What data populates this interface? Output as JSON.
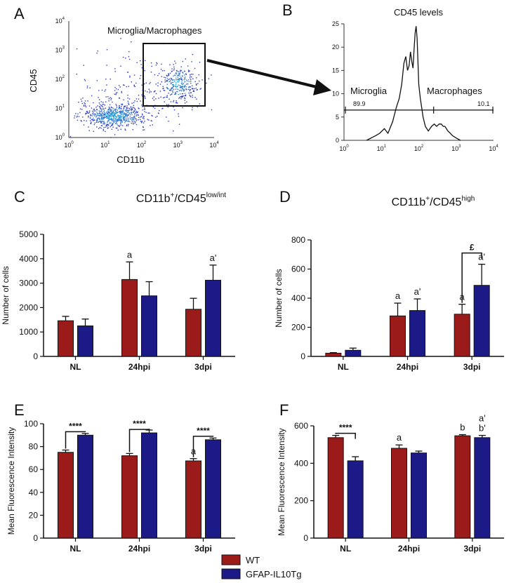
{
  "panel_labels": [
    "A",
    "B",
    "C",
    "D",
    "E",
    "F"
  ],
  "colors": {
    "wt": "#9b1b1b",
    "tg": "#1c1a86",
    "scatter_dense": "#2da0d8",
    "scatter_sparse": "#2b3bc4",
    "scatter_core": "#7ac943"
  },
  "legend": {
    "wt_label": "WT",
    "tg_label": "GFAP-IL10Tg"
  },
  "chart_data": [
    {
      "id": "A",
      "type": "scatter",
      "title": "",
      "xlabel": "CD11b",
      "ylabel": "CD45",
      "xscale": "log",
      "yscale": "log",
      "xlim": [
        1,
        10000
      ],
      "ylim": [
        1,
        10000
      ],
      "x_tick_labels": [
        "10^0",
        "10^1",
        "10^2",
        "10^3",
        "10^4"
      ],
      "y_tick_labels": [
        "10^0",
        "10^1",
        "10^2",
        "10^3",
        "10^4"
      ],
      "gate_label": "Microglia/Macrophages",
      "gate": {
        "x_range": [
          150,
          5500
        ],
        "y_range": [
          12,
          1500
        ]
      },
      "populations": [
        {
          "name": "low",
          "center_log": [
            1.25,
            0.75
          ],
          "spread_log": [
            0.45,
            0.2
          ],
          "count": 650
        },
        {
          "name": "gated",
          "center_log": [
            3.0,
            1.85
          ],
          "spread_log": [
            0.25,
            0.3
          ],
          "count": 260
        },
        {
          "name": "background",
          "center_log": [
            2.0,
            1.6
          ],
          "spread_log": [
            0.9,
            0.6
          ],
          "count": 260
        }
      ]
    },
    {
      "id": "B",
      "type": "line",
      "title": "CD45 levels",
      "xscale": "log",
      "xlim": [
        1,
        10000
      ],
      "ylim": [
        0,
        25
      ],
      "x_tick_labels": [
        "10^0",
        "10^1",
        "10^2",
        "10^3",
        "10^4"
      ],
      "y_ticks": [
        0,
        5,
        10,
        15,
        20,
        25
      ],
      "regions": [
        {
          "label": "Microglia",
          "percent": "89.9"
        },
        {
          "label": "Macrophages",
          "percent": "10.1"
        }
      ],
      "gate_line_y": 6.5,
      "gate_split_x": 250,
      "x": [
        4,
        7,
        9,
        12,
        15,
        20,
        25,
        30,
        35,
        40,
        45,
        50,
        55,
        60,
        65,
        70,
        75,
        80,
        85,
        90,
        95,
        100,
        110,
        120,
        130,
        150,
        180,
        220,
        260,
        300,
        350,
        400,
        450,
        500,
        550,
        600,
        700,
        800,
        1000,
        1300
      ],
      "y": [
        0,
        1,
        1.5,
        2.5,
        1.5,
        4,
        7,
        9,
        12,
        16.5,
        18,
        15,
        16,
        19,
        17,
        15.5,
        19.5,
        23,
        24.5,
        22,
        17,
        12,
        9,
        7,
        5,
        3,
        2,
        3,
        3.5,
        3,
        3.5,
        3.5,
        3,
        3,
        2.5,
        2,
        1.5,
        1,
        0.5,
        0
      ]
    },
    {
      "id": "C",
      "type": "bar",
      "title_main": "CD11b",
      "title_sup1": "+",
      "title_mid": "/CD45",
      "title_sup2": "low/int",
      "ylabel": "Number of cells",
      "categories": [
        "NL",
        "24hpi",
        "3dpi"
      ],
      "ylim": [
        0,
        5000
      ],
      "y_ticks": [
        0,
        1000,
        2000,
        3000,
        4000,
        5000
      ],
      "series": [
        {
          "name": "WT",
          "values": [
            1460,
            3150,
            1930
          ],
          "errors": [
            180,
            720,
            450
          ],
          "labels": [
            "",
            "a",
            ""
          ]
        },
        {
          "name": "GFAP-IL10Tg",
          "values": [
            1250,
            2480,
            3120
          ],
          "errors": [
            280,
            580,
            620
          ],
          "labels": [
            "",
            "",
            "a'"
          ]
        }
      ],
      "brackets": []
    },
    {
      "id": "D",
      "type": "bar",
      "title_main": "CD11b",
      "title_sup1": "+",
      "title_mid": "/CD45",
      "title_sup2": "high",
      "ylabel": "Number of cells",
      "categories": [
        "NL",
        "24hpi",
        "3dpi"
      ],
      "ylim": [
        0,
        800
      ],
      "y_ticks": [
        0,
        200,
        400,
        600,
        800
      ],
      "series": [
        {
          "name": "WT",
          "values": [
            22,
            278,
            290
          ],
          "errors": [
            4,
            88,
            68
          ],
          "labels": [
            "",
            "a",
            "a"
          ]
        },
        {
          "name": "GFAP-IL10Tg",
          "values": [
            42,
            315,
            488
          ],
          "errors": [
            15,
            80,
            145
          ],
          "labels": [
            "",
            "a'",
            "a'"
          ]
        }
      ],
      "brackets": [
        {
          "category": 2,
          "label": "£",
          "y": 710
        }
      ]
    },
    {
      "id": "E",
      "type": "bar",
      "ylabel": "Mean Fluorescence Intensity",
      "categories": [
        "NL",
        "24hpi",
        "3dpi"
      ],
      "ylim": [
        0,
        100
      ],
      "y_ticks": [
        0,
        20,
        40,
        60,
        80,
        100
      ],
      "series": [
        {
          "name": "WT",
          "values": [
            75,
            72,
            67.5
          ],
          "errors": [
            2,
            2,
            2
          ],
          "labels": [
            "",
            "",
            "a"
          ]
        },
        {
          "name": "GFAP-IL10Tg",
          "values": [
            90,
            92,
            86
          ],
          "errors": [
            1.5,
            2.5,
            1.5
          ],
          "labels": [
            "",
            "",
            ""
          ]
        }
      ],
      "brackets": [
        {
          "category": 0,
          "label": "****",
          "y": 93
        },
        {
          "category": 1,
          "label": "****",
          "y": 95
        },
        {
          "category": 2,
          "label": "****",
          "y": 89
        }
      ]
    },
    {
      "id": "F",
      "type": "bar",
      "ylabel": "Mean Fluorescence Intensity",
      "categories": [
        "NL",
        "24hpi",
        "3dpi"
      ],
      "ylim": [
        0,
        600
      ],
      "y_ticks": [
        0,
        200,
        400,
        600
      ],
      "series": [
        {
          "name": "WT",
          "values": [
            537,
            480,
            547
          ],
          "errors": [
            12,
            18,
            6
          ],
          "labels": [
            "",
            "a",
            "b"
          ]
        },
        {
          "name": "GFAP-IL10Tg",
          "values": [
            413,
            455,
            537
          ],
          "errors": [
            22,
            10,
            12
          ],
          "labels": [
            "",
            "",
            "a'|b'"
          ]
        }
      ],
      "brackets": [
        {
          "category": 0,
          "label": "****",
          "y": 560
        }
      ]
    }
  ]
}
